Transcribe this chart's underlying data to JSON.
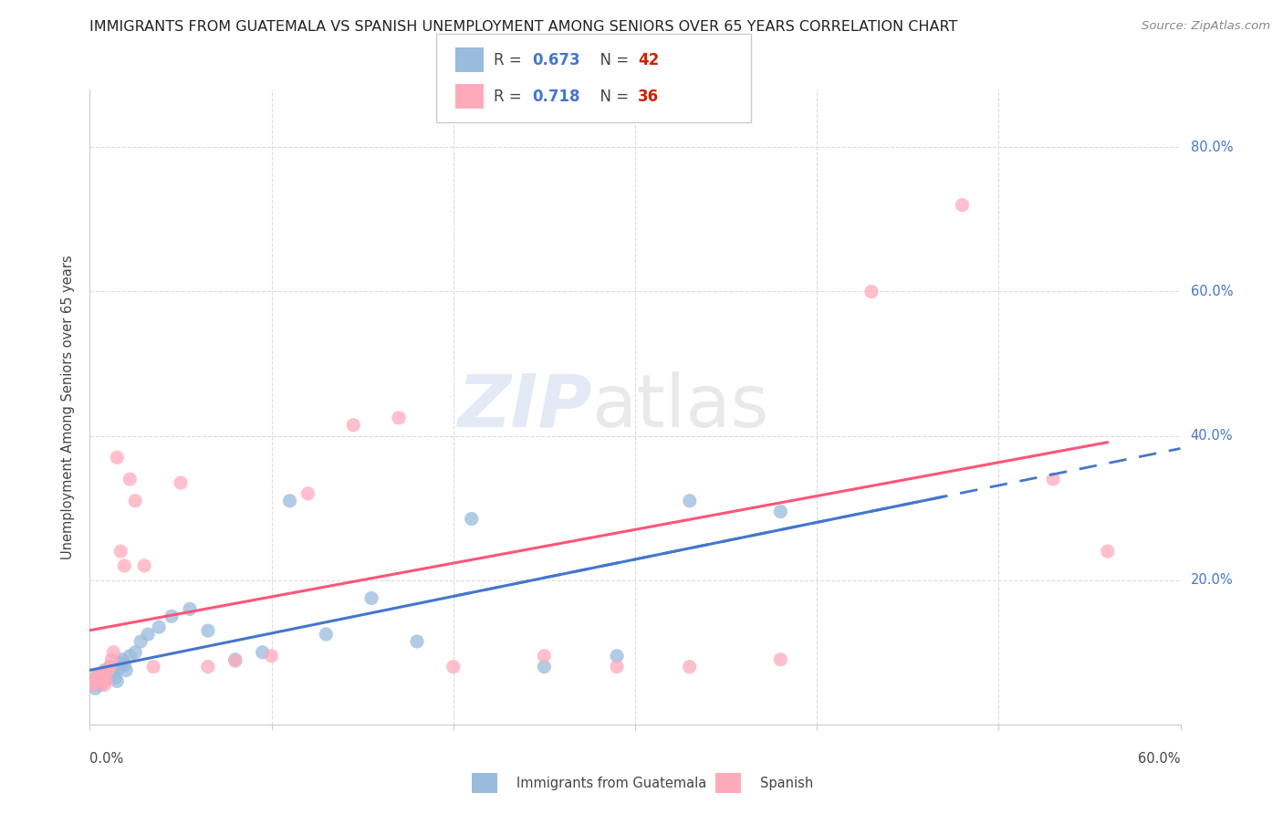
{
  "title": "IMMIGRANTS FROM GUATEMALA VS SPANISH UNEMPLOYMENT AMONG SENIORS OVER 65 YEARS CORRELATION CHART",
  "source": "Source: ZipAtlas.com",
  "ylabel": "Unemployment Among Seniors over 65 years",
  "xlim": [
    0.0,
    0.6
  ],
  "ylim": [
    0.0,
    0.88
  ],
  "legend_r1": "0.673",
  "legend_n1": "42",
  "legend_r2": "0.718",
  "legend_n2": "36",
  "label_blue": "Immigrants from Guatemala",
  "label_pink": "Spanish",
  "color_blue": "#99BBDD",
  "color_pink": "#FFAABB",
  "color_blue_line": "#4477CC",
  "color_pink_line": "#FF5577",
  "color_r": "#4477CC",
  "color_n": "#CC2200",
  "watermark_zip": "ZIP",
  "watermark_atlas": "atlas",
  "blue_scatter_x": [
    0.001,
    0.002,
    0.003,
    0.003,
    0.004,
    0.005,
    0.005,
    0.006,
    0.007,
    0.008,
    0.008,
    0.009,
    0.01,
    0.011,
    0.012,
    0.013,
    0.014,
    0.015,
    0.016,
    0.017,
    0.018,
    0.019,
    0.02,
    0.022,
    0.025,
    0.028,
    0.032,
    0.038,
    0.045,
    0.055,
    0.065,
    0.08,
    0.095,
    0.11,
    0.13,
    0.155,
    0.18,
    0.21,
    0.25,
    0.29,
    0.33,
    0.38
  ],
  "blue_scatter_y": [
    0.06,
    0.055,
    0.05,
    0.065,
    0.058,
    0.062,
    0.07,
    0.055,
    0.06,
    0.065,
    0.075,
    0.068,
    0.072,
    0.08,
    0.075,
    0.07,
    0.065,
    0.06,
    0.078,
    0.085,
    0.09,
    0.082,
    0.075,
    0.095,
    0.1,
    0.115,
    0.125,
    0.135,
    0.15,
    0.16,
    0.13,
    0.09,
    0.1,
    0.31,
    0.125,
    0.175,
    0.115,
    0.285,
    0.08,
    0.095,
    0.31,
    0.295
  ],
  "pink_scatter_x": [
    0.001,
    0.002,
    0.003,
    0.004,
    0.005,
    0.006,
    0.007,
    0.008,
    0.009,
    0.01,
    0.011,
    0.012,
    0.013,
    0.015,
    0.017,
    0.019,
    0.022,
    0.025,
    0.03,
    0.035,
    0.05,
    0.065,
    0.08,
    0.1,
    0.12,
    0.145,
    0.17,
    0.2,
    0.25,
    0.29,
    0.33,
    0.38,
    0.43,
    0.48,
    0.53,
    0.56
  ],
  "pink_scatter_y": [
    0.06,
    0.055,
    0.058,
    0.065,
    0.07,
    0.062,
    0.068,
    0.055,
    0.06,
    0.075,
    0.08,
    0.09,
    0.1,
    0.37,
    0.24,
    0.22,
    0.34,
    0.31,
    0.22,
    0.08,
    0.335,
    0.08,
    0.088,
    0.095,
    0.32,
    0.415,
    0.425,
    0.08,
    0.095,
    0.08,
    0.08,
    0.09,
    0.6,
    0.72,
    0.34,
    0.24
  ],
  "grid_color": "#dddddd",
  "spine_color": "#cccccc"
}
